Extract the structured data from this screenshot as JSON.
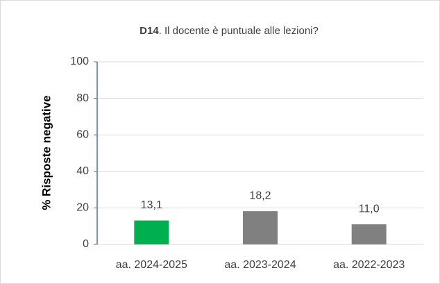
{
  "chart_data": {
    "type": "bar",
    "title": [
      "D14",
      ". Il docente è puntuale alle lezioni?"
    ],
    "y_label": "% Risposte negative",
    "categories": [
      "aa. 2024-2025",
      "aa. 2023-2024",
      "aa. 2022-2023"
    ],
    "values": [
      13.1,
      18.2,
      11.0
    ],
    "value_labels": [
      "13,1",
      "18,2",
      "11,0"
    ],
    "colors": [
      "#00b050",
      "#808080",
      "#808080"
    ],
    "ylim": [
      0,
      100
    ],
    "yticks": [
      0,
      20,
      40,
      60,
      80,
      100
    ],
    "grid": true
  }
}
